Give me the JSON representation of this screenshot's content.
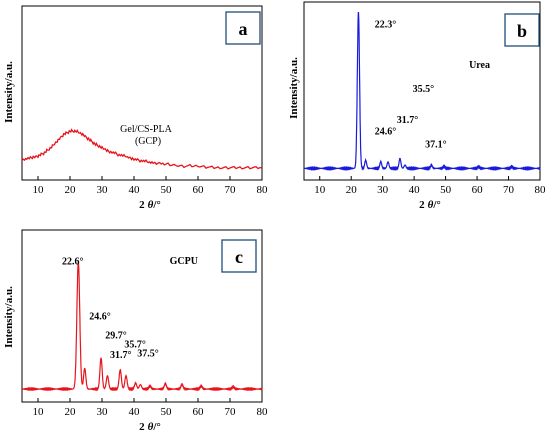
{
  "chart_data": [
    {
      "panel": "a",
      "type": "line",
      "color": "#e8141c",
      "xlabel_main": "2",
      "xlabel_sym": "θ",
      "xlabel_unit": "/°",
      "ylabel": "Intensity/a.u.",
      "xlim": [
        5,
        80
      ],
      "x_ticks": [
        "10",
        "20",
        "30",
        "40",
        "50",
        "60",
        "70",
        "80"
      ],
      "label_line1": "Gel/CS-PLA",
      "label_line2": "(GCP)",
      "ylim": [
        0,
        100
      ],
      "series": [
        {
          "x": [
            5,
            8,
            10,
            12,
            14,
            16,
            18,
            20,
            22,
            24,
            26,
            28,
            30,
            32,
            35,
            38,
            40,
            43,
            46,
            50,
            55,
            60,
            65,
            70,
            75,
            80
          ],
          "y": [
            10,
            11,
            12,
            14,
            17,
            21,
            25,
            27,
            27,
            25,
            22,
            19,
            17,
            15,
            13,
            11.5,
            10,
            9,
            8,
            7,
            6,
            6,
            5,
            5,
            5,
            5
          ]
        }
      ],
      "annotations": []
    },
    {
      "panel": "b",
      "type": "line",
      "color": "#1a1adc",
      "xlabel_main": "2",
      "xlabel_sym": "θ",
      "xlabel_unit": "/°",
      "ylabel": "Intensity/a.u.",
      "xlim": [
        5,
        80
      ],
      "x_ticks": [
        "10",
        "20",
        "30",
        "40",
        "50",
        "60",
        "70",
        "80"
      ],
      "label": "Urea",
      "ylim": [
        0,
        100
      ],
      "baseline": 1,
      "peaks": [
        {
          "x": 22.3,
          "h": 97,
          "w": 0.35
        },
        {
          "x": 24.6,
          "h": 5,
          "w": 0.3
        },
        {
          "x": 29.4,
          "h": 4,
          "w": 0.3
        },
        {
          "x": 31.7,
          "h": 4,
          "w": 0.3
        },
        {
          "x": 35.5,
          "h": 6,
          "w": 0.3
        },
        {
          "x": 37.1,
          "h": 2,
          "w": 0.3
        },
        {
          "x": 45.5,
          "h": 2,
          "w": 0.3
        },
        {
          "x": 49.5,
          "h": 1.2,
          "w": 0.3
        },
        {
          "x": 60.5,
          "h": 1,
          "w": 0.3
        },
        {
          "x": 71.0,
          "h": 1,
          "w": 0.3
        }
      ],
      "annotations": [
        {
          "text": "22.3°",
          "x": 27.5,
          "y": 88
        },
        {
          "text": "24.6°",
          "x": 27.5,
          "y": 22
        },
        {
          "text": "31.7°",
          "x": 34.5,
          "y": 29
        },
        {
          "text": "35.5°",
          "x": 39.5,
          "y": 48
        },
        {
          "text": "37.1°",
          "x": 43.5,
          "y": 14
        }
      ]
    },
    {
      "panel": "c",
      "type": "line",
      "color": "#e8141c",
      "xlabel_main": "2",
      "xlabel_sym": "θ",
      "xlabel_unit": "/°",
      "ylabel": "Intensity/a.u.",
      "xlim": [
        5,
        80
      ],
      "x_ticks": [
        "10",
        "20",
        "30",
        "40",
        "50",
        "60",
        "70",
        "80"
      ],
      "label": "GCPU",
      "ylim": [
        0,
        100
      ],
      "baseline": 2,
      "peaks": [
        {
          "x": 22.6,
          "h": 86,
          "w": 0.45
        },
        {
          "x": 24.6,
          "h": 14,
          "w": 0.35
        },
        {
          "x": 29.7,
          "h": 21,
          "w": 0.35
        },
        {
          "x": 31.7,
          "h": 9,
          "w": 0.35
        },
        {
          "x": 35.7,
          "h": 13,
          "w": 0.35
        },
        {
          "x": 37.5,
          "h": 9,
          "w": 0.35
        },
        {
          "x": 40.5,
          "h": 4,
          "w": 0.35
        },
        {
          "x": 42.0,
          "h": 3,
          "w": 0.35
        },
        {
          "x": 45.0,
          "h": 2,
          "w": 0.35
        },
        {
          "x": 49.8,
          "h": 3.5,
          "w": 0.35
        },
        {
          "x": 55.0,
          "h": 3,
          "w": 0.35
        },
        {
          "x": 61.0,
          "h": 2,
          "w": 0.35
        },
        {
          "x": 71.0,
          "h": 1.5,
          "w": 0.35
        }
      ],
      "annotations": [
        {
          "text": "22.6°",
          "x": 17.5,
          "y": 86
        },
        {
          "text": "24.6°",
          "x": 26.0,
          "y": 49
        },
        {
          "text": "29.7°",
          "x": 31.0,
          "y": 36
        },
        {
          "text": "31.7°",
          "x": 32.5,
          "y": 23
        },
        {
          "text": "35.7°",
          "x": 37.0,
          "y": 30
        },
        {
          "text": "37.5°",
          "x": 41.0,
          "y": 24
        }
      ]
    }
  ]
}
